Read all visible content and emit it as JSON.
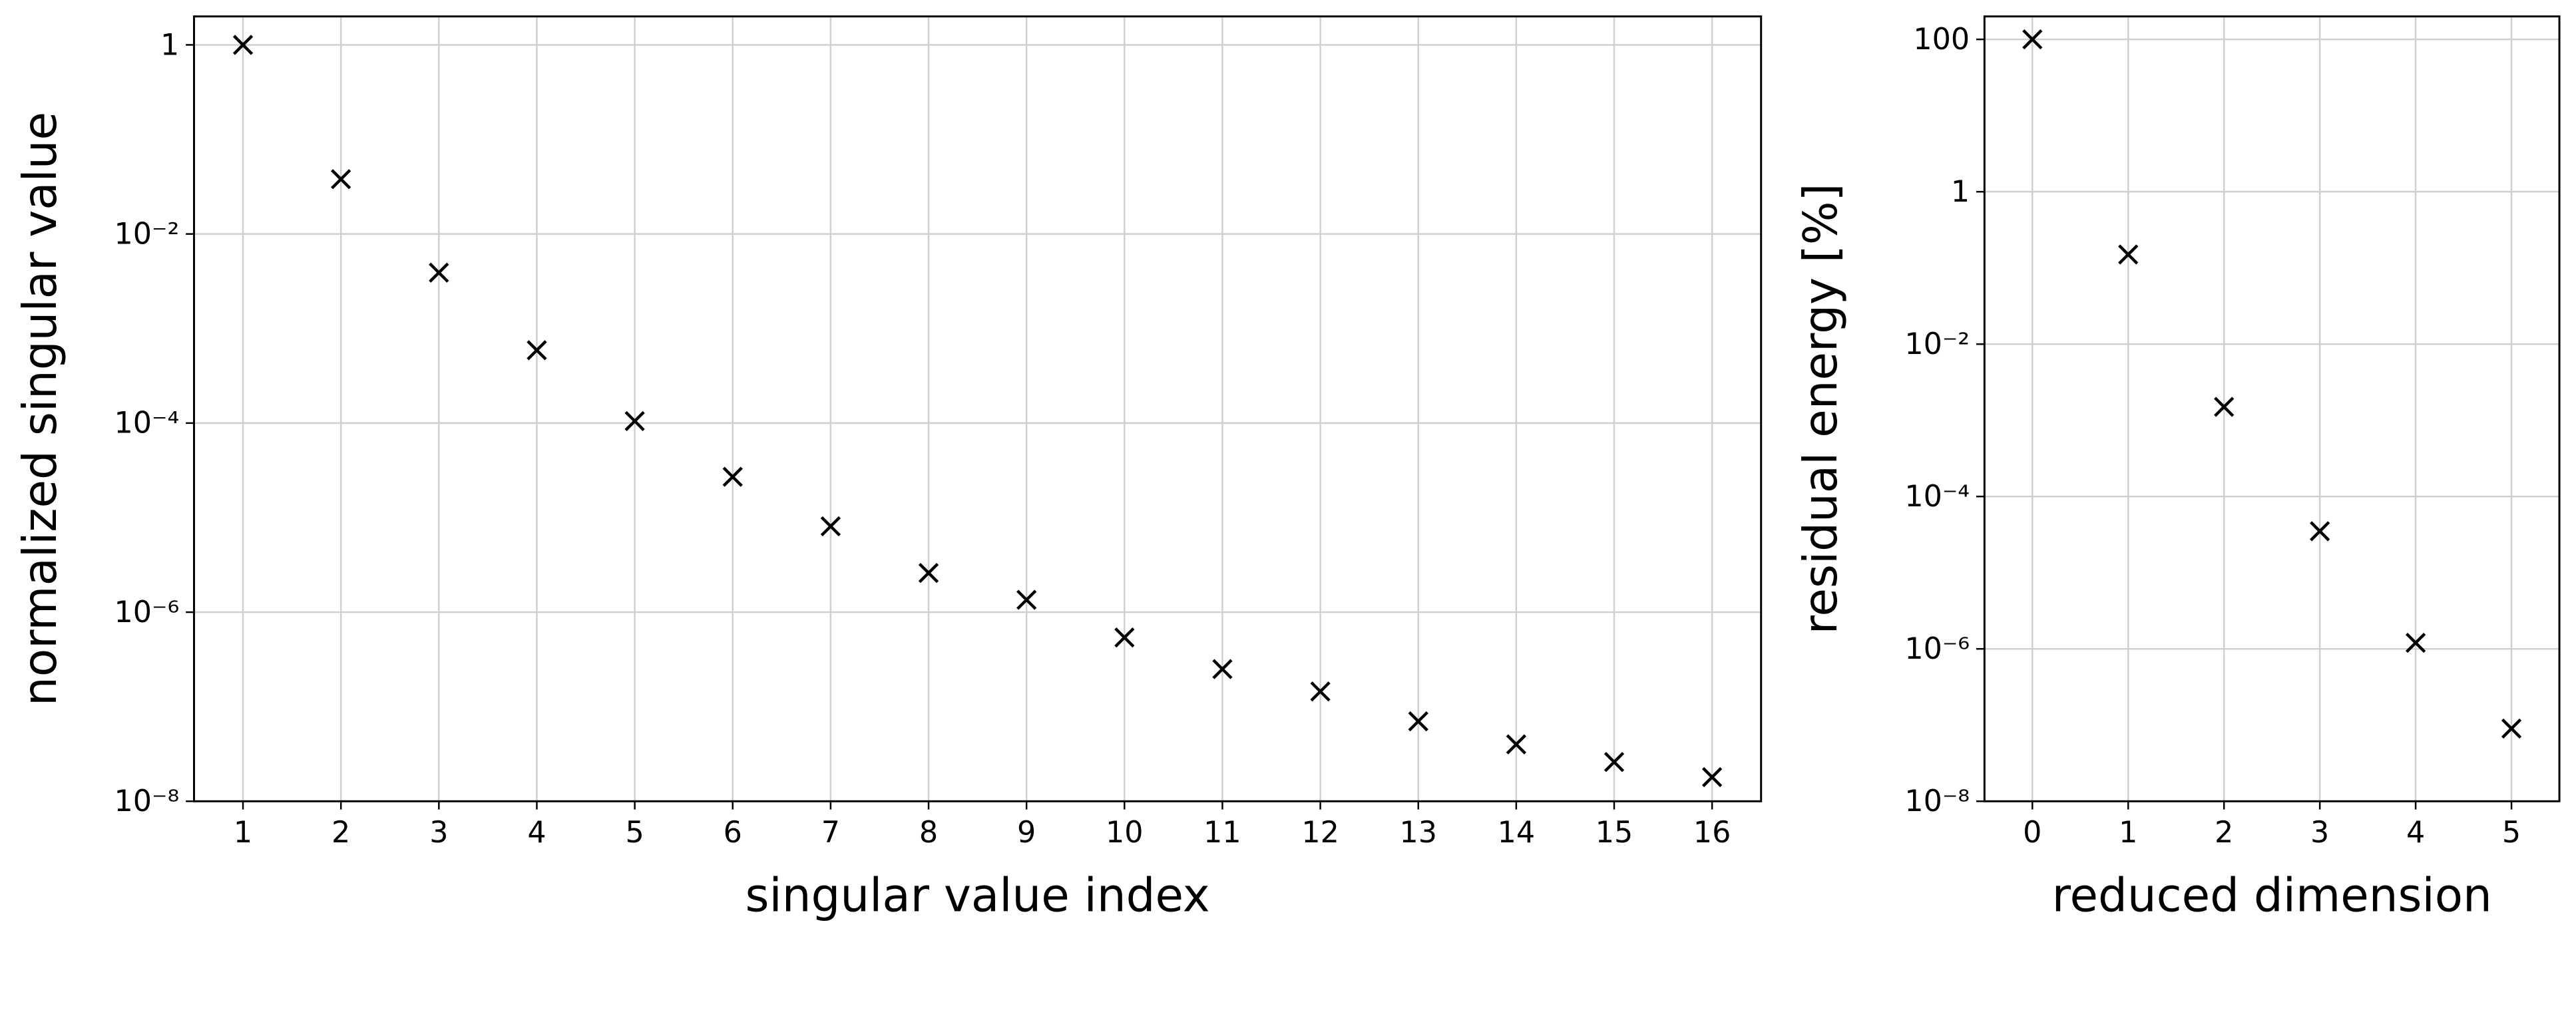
{
  "chart_data": [
    {
      "type": "scatter",
      "xlabel": "singular value index",
      "ylabel": "normalized singular value",
      "x": [
        1,
        2,
        3,
        4,
        5,
        6,
        7,
        8,
        9,
        10,
        11,
        12,
        13,
        14,
        15,
        16
      ],
      "values": [
        1,
        0.038,
        0.0039,
        0.00059,
        0.000105,
        2.7e-05,
        8.1e-06,
        2.6e-06,
        1.35e-06,
        5.4e-07,
        2.5e-07,
        1.45e-07,
        7e-08,
        4e-08,
        2.6e-08,
        1.8e-08
      ],
      "color": "#000000",
      "marker": "x",
      "yscale": "log",
      "grid": true,
      "xlim": [
        0.5,
        16.5
      ],
      "xticks": [
        1,
        2,
        3,
        4,
        5,
        6,
        7,
        8,
        9,
        10,
        11,
        12,
        13,
        14,
        15,
        16
      ],
      "ylim": [
        1e-08,
        2
      ],
      "yticks": [
        {
          "value": 1e-08,
          "label": "10⁻⁸"
        },
        {
          "value": 1e-06,
          "label": "10⁻⁶"
        },
        {
          "value": 0.0001,
          "label": "10⁻⁴"
        },
        {
          "value": 0.01,
          "label": "10⁻²"
        },
        1
      ]
    },
    {
      "type": "scatter",
      "xlabel": "reduced dimension",
      "ylabel": "residual energy [%]",
      "x": [
        0,
        1,
        2,
        3,
        4,
        5
      ],
      "values": [
        100,
        0.15,
        0.0015,
        3.5e-05,
        1.2e-06,
        9e-08
      ],
      "color": "#000000",
      "marker": "x",
      "yscale": "log",
      "grid": true,
      "xlim": [
        -0.5,
        5.5
      ],
      "xticks": [
        0,
        1,
        2,
        3,
        4,
        5
      ],
      "ylim": [
        1e-08,
        200
      ],
      "yticks": [
        {
          "value": 1e-08,
          "label": "10⁻⁸"
        },
        {
          "value": 1e-06,
          "label": "10⁻⁶"
        },
        {
          "value": 0.0001,
          "label": "10⁻⁴"
        },
        {
          "value": 0.01,
          "label": "10⁻²"
        },
        1,
        100
      ]
    }
  ]
}
